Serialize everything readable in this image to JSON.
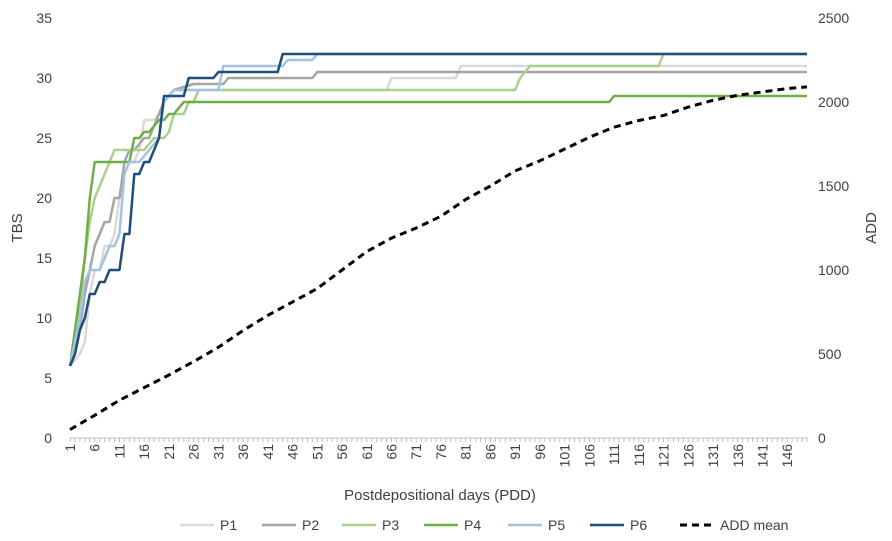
{
  "chart_data": {
    "type": "line",
    "xlabel": "Postdepositional days (PDD)",
    "ylabel": "TBS",
    "y2label": "ADD",
    "x_range": [
      1,
      150
    ],
    "ylim": [
      0,
      35
    ],
    "y2lim": [
      0,
      2500
    ],
    "grid": false,
    "legend_position": "bottom",
    "x_ticks": [
      "1",
      "6",
      "11",
      "16",
      "21",
      "26",
      "31",
      "36",
      "41",
      "46",
      "51",
      "56",
      "61",
      "66",
      "71",
      "76",
      "81",
      "86",
      "91",
      "96",
      "101",
      "106",
      "111",
      "116",
      "121",
      "126",
      "131",
      "136",
      "141",
      "146"
    ],
    "y_ticks": [
      "0",
      "5",
      "10",
      "15",
      "20",
      "25",
      "30",
      "35"
    ],
    "y2_ticks": [
      "0",
      "500",
      "1000",
      "1500",
      "2000",
      "2500"
    ],
    "series": [
      {
        "name": "P1",
        "axis": "left",
        "color": "#d9d9d9",
        "dash": "solid",
        "points": [
          [
            1,
            6
          ],
          [
            2,
            6.5
          ],
          [
            3,
            7
          ],
          [
            4,
            8
          ],
          [
            5,
            12
          ],
          [
            6,
            14
          ],
          [
            7,
            14
          ],
          [
            8,
            16
          ],
          [
            9,
            16
          ],
          [
            10,
            17
          ],
          [
            11,
            20
          ],
          [
            12,
            22
          ],
          [
            13,
            23
          ],
          [
            14,
            23
          ],
          [
            15,
            24
          ],
          [
            16,
            26.5
          ],
          [
            17,
            26.5
          ],
          [
            18,
            26.5
          ],
          [
            19,
            27
          ],
          [
            20,
            28
          ],
          [
            21,
            28.5
          ],
          [
            22,
            29
          ],
          [
            32,
            29
          ],
          [
            33,
            29
          ],
          [
            65,
            29
          ],
          [
            66,
            30
          ],
          [
            79,
            30
          ],
          [
            80,
            31
          ],
          [
            150,
            31
          ]
        ]
      },
      {
        "name": "P2",
        "axis": "left",
        "color": "#a5a5a5",
        "dash": "solid",
        "points": [
          [
            1,
            6
          ],
          [
            2,
            7
          ],
          [
            3,
            9
          ],
          [
            4,
            12
          ],
          [
            5,
            14
          ],
          [
            6,
            16
          ],
          [
            7,
            17
          ],
          [
            8,
            18
          ],
          [
            9,
            18
          ],
          [
            10,
            20
          ],
          [
            11,
            20
          ],
          [
            12,
            23
          ],
          [
            13,
            24
          ],
          [
            14,
            24
          ],
          [
            15,
            24.5
          ],
          [
            16,
            25
          ],
          [
            17,
            25
          ],
          [
            18,
            26
          ],
          [
            19,
            27
          ],
          [
            20,
            28
          ],
          [
            21,
            28.5
          ],
          [
            22,
            29
          ],
          [
            26,
            29.5
          ],
          [
            32,
            29.5
          ],
          [
            33,
            30
          ],
          [
            50,
            30
          ],
          [
            51,
            30.5
          ],
          [
            150,
            30.5
          ]
        ]
      },
      {
        "name": "P3",
        "axis": "left",
        "color": "#a9d18e",
        "dash": "solid",
        "points": [
          [
            1,
            6
          ],
          [
            2,
            8
          ],
          [
            3,
            11
          ],
          [
            4,
            15
          ],
          [
            5,
            18
          ],
          [
            6,
            20
          ],
          [
            7,
            21
          ],
          [
            8,
            22
          ],
          [
            9,
            23
          ],
          [
            10,
            24
          ],
          [
            12,
            24
          ],
          [
            13,
            24
          ],
          [
            14,
            24
          ],
          [
            15,
            24
          ],
          [
            16,
            24
          ],
          [
            17,
            24.5
          ],
          [
            18,
            25
          ],
          [
            19,
            25
          ],
          [
            20,
            25
          ],
          [
            21,
            25.5
          ],
          [
            22,
            27
          ],
          [
            23,
            27
          ],
          [
            24,
            27
          ],
          [
            25,
            28
          ],
          [
            26,
            28
          ],
          [
            27,
            29
          ],
          [
            91,
            29
          ],
          [
            92,
            30
          ],
          [
            93,
            30.5
          ],
          [
            94,
            31
          ],
          [
            120,
            31
          ],
          [
            121,
            32
          ],
          [
            150,
            32
          ]
        ]
      },
      {
        "name": "P4",
        "axis": "left",
        "color": "#70ad47",
        "dash": "solid",
        "points": [
          [
            1,
            6
          ],
          [
            2,
            9
          ],
          [
            3,
            12
          ],
          [
            4,
            15
          ],
          [
            5,
            20
          ],
          [
            6,
            23
          ],
          [
            7,
            23
          ],
          [
            8,
            23
          ],
          [
            9,
            23
          ],
          [
            10,
            23
          ],
          [
            11,
            23
          ],
          [
            12,
            23
          ],
          [
            13,
            23
          ],
          [
            14,
            25
          ],
          [
            15,
            25
          ],
          [
            16,
            25.5
          ],
          [
            17,
            25.5
          ],
          [
            18,
            26
          ],
          [
            19,
            26.5
          ],
          [
            20,
            26.5
          ],
          [
            21,
            27
          ],
          [
            22,
            27
          ],
          [
            23,
            27.5
          ],
          [
            24,
            28
          ],
          [
            110,
            28
          ],
          [
            111,
            28.5
          ],
          [
            150,
            28.5
          ]
        ]
      },
      {
        "name": "P5",
        "axis": "left",
        "color": "#a4c2e6",
        "dash": "solid",
        "points": [
          [
            1,
            6
          ],
          [
            2,
            8
          ],
          [
            3,
            10
          ],
          [
            4,
            13
          ],
          [
            5,
            14
          ],
          [
            6,
            14
          ],
          [
            7,
            14
          ],
          [
            8,
            15
          ],
          [
            9,
            16
          ],
          [
            10,
            16
          ],
          [
            11,
            17
          ],
          [
            12,
            22
          ],
          [
            13,
            23
          ],
          [
            14,
            23
          ],
          [
            15,
            23
          ],
          [
            16,
            23.5
          ],
          [
            17,
            24
          ],
          [
            18,
            24.5
          ],
          [
            19,
            25
          ],
          [
            20,
            28
          ],
          [
            21,
            28.5
          ],
          [
            22,
            29
          ],
          [
            26,
            29
          ],
          [
            31,
            29
          ],
          [
            32,
            31
          ],
          [
            44,
            31
          ],
          [
            45,
            31.5
          ],
          [
            50,
            31.5
          ],
          [
            51,
            32
          ],
          [
            150,
            32
          ]
        ]
      },
      {
        "name": "P6",
        "axis": "left",
        "color": "#1f4e79",
        "dash": "solid",
        "points": [
          [
            1,
            6
          ],
          [
            2,
            7
          ],
          [
            3,
            9
          ],
          [
            4,
            10
          ],
          [
            5,
            12
          ],
          [
            6,
            12
          ],
          [
            7,
            13
          ],
          [
            8,
            13
          ],
          [
            9,
            14
          ],
          [
            10,
            14
          ],
          [
            11,
            14
          ],
          [
            12,
            17
          ],
          [
            13,
            17
          ],
          [
            14,
            22
          ],
          [
            15,
            22
          ],
          [
            16,
            23
          ],
          [
            17,
            23
          ],
          [
            18,
            24
          ],
          [
            19,
            25
          ],
          [
            20,
            28.5
          ],
          [
            21,
            28.5
          ],
          [
            22,
            28.5
          ],
          [
            23,
            28.5
          ],
          [
            24,
            28.5
          ],
          [
            25,
            30
          ],
          [
            26,
            30
          ],
          [
            27,
            30
          ],
          [
            28,
            30
          ],
          [
            29,
            30
          ],
          [
            30,
            30
          ],
          [
            31,
            30.5
          ],
          [
            32,
            30.5
          ],
          [
            43,
            30.5
          ],
          [
            44,
            32
          ],
          [
            150,
            32
          ]
        ]
      },
      {
        "name": "ADD  mean",
        "axis": "right",
        "color": "#000000",
        "dash": "dashed",
        "points": [
          [
            1,
            50
          ],
          [
            6,
            135
          ],
          [
            11,
            225
          ],
          [
            16,
            300
          ],
          [
            21,
            375
          ],
          [
            26,
            455
          ],
          [
            31,
            540
          ],
          [
            36,
            640
          ],
          [
            41,
            730
          ],
          [
            46,
            810
          ],
          [
            51,
            890
          ],
          [
            56,
            1000
          ],
          [
            61,
            1110
          ],
          [
            66,
            1190
          ],
          [
            71,
            1250
          ],
          [
            76,
            1320
          ],
          [
            81,
            1420
          ],
          [
            86,
            1500
          ],
          [
            91,
            1590
          ],
          [
            96,
            1650
          ],
          [
            101,
            1720
          ],
          [
            106,
            1790
          ],
          [
            111,
            1850
          ],
          [
            116,
            1890
          ],
          [
            121,
            1920
          ],
          [
            126,
            1970
          ],
          [
            131,
            2010
          ],
          [
            136,
            2040
          ],
          [
            141,
            2060
          ],
          [
            146,
            2080
          ],
          [
            150,
            2090
          ]
        ]
      }
    ]
  }
}
